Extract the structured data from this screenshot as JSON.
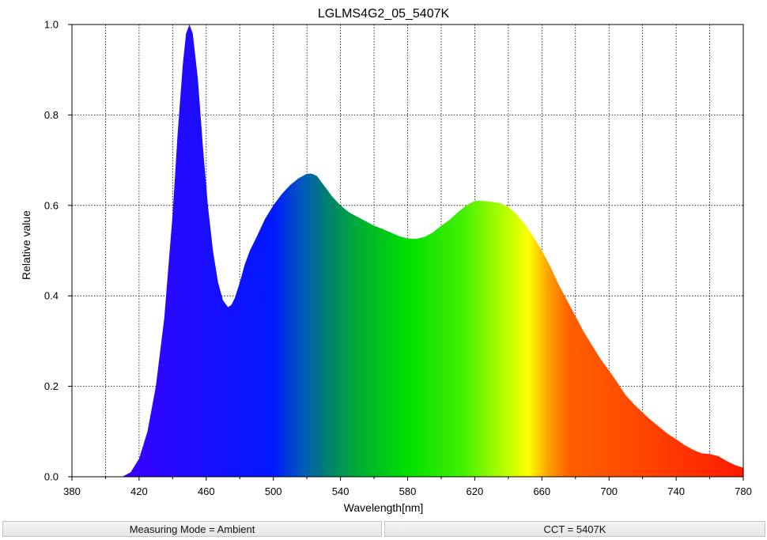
{
  "chart_data": {
    "type": "area",
    "title": "LGLMS4G2_05_5407K",
    "xlabel": "Wavelength[nm]",
    "ylabel": "Relative value",
    "xlim": [
      380,
      780
    ],
    "ylim": [
      0,
      1.0
    ],
    "xticks": [
      "380",
      "420",
      "460",
      "500",
      "540",
      "580",
      "620",
      "660",
      "700",
      "740",
      "780"
    ],
    "yticks": [
      "0.0",
      "0.2",
      "0.4",
      "0.6",
      "0.8",
      "1.0"
    ],
    "grid": true,
    "fill": "visible-spectrum-gradient",
    "x": [
      410,
      415,
      420,
      425,
      430,
      435,
      440,
      443,
      446,
      448,
      450,
      452,
      455,
      458,
      461,
      464,
      467,
      470,
      473,
      475,
      477,
      480,
      483,
      486,
      490,
      495,
      500,
      505,
      510,
      515,
      520,
      523,
      526,
      530,
      535,
      540,
      545,
      550,
      555,
      560,
      565,
      570,
      575,
      580,
      585,
      590,
      595,
      600,
      605,
      610,
      615,
      620,
      625,
      630,
      635,
      640,
      645,
      650,
      655,
      660,
      665,
      670,
      675,
      680,
      685,
      690,
      695,
      700,
      705,
      710,
      715,
      720,
      725,
      730,
      735,
      740,
      745,
      750,
      755,
      760,
      765,
      770,
      775,
      780
    ],
    "y": [
      0.0,
      0.01,
      0.04,
      0.1,
      0.2,
      0.35,
      0.58,
      0.76,
      0.91,
      0.98,
      1.0,
      0.98,
      0.88,
      0.73,
      0.6,
      0.5,
      0.43,
      0.39,
      0.375,
      0.38,
      0.395,
      0.43,
      0.47,
      0.5,
      0.53,
      0.57,
      0.6,
      0.625,
      0.645,
      0.66,
      0.67,
      0.67,
      0.665,
      0.645,
      0.62,
      0.6,
      0.585,
      0.575,
      0.565,
      0.555,
      0.548,
      0.54,
      0.532,
      0.527,
      0.526,
      0.53,
      0.54,
      0.555,
      0.568,
      0.585,
      0.6,
      0.61,
      0.61,
      0.608,
      0.605,
      0.597,
      0.58,
      0.558,
      0.53,
      0.5,
      0.465,
      0.425,
      0.39,
      0.355,
      0.32,
      0.29,
      0.26,
      0.235,
      0.208,
      0.18,
      0.16,
      0.142,
      0.125,
      0.11,
      0.095,
      0.083,
      0.07,
      0.06,
      0.052,
      0.05,
      0.046,
      0.035,
      0.026,
      0.02
    ]
  },
  "status": {
    "measuring_mode": "Measuring Mode = Ambient",
    "cct": "CCT = 5407K"
  }
}
